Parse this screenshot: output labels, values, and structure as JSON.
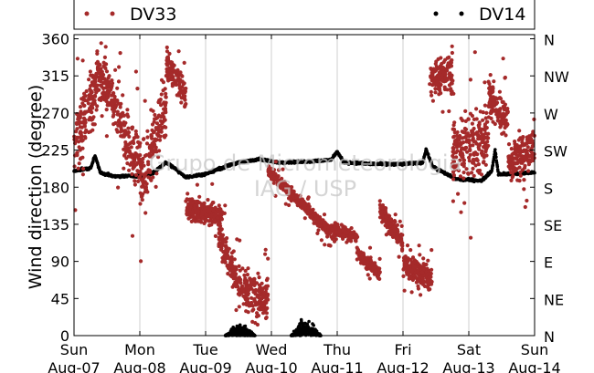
{
  "chart_data": {
    "type": "scatter",
    "title": "",
    "xlabel": "",
    "ylabel": "Wind direction (degree)",
    "ylim": [
      0,
      365
    ],
    "yticks": [
      0,
      45,
      90,
      135,
      180,
      225,
      270,
      315,
      360
    ],
    "ylabels_right": [
      "N",
      "NE",
      "E",
      "SE",
      "S",
      "SW",
      "W",
      "NW",
      "N"
    ],
    "xlim": [
      0,
      7
    ],
    "xticks": [
      {
        "day": "Sun",
        "date": "Aug-07"
      },
      {
        "day": "Mon",
        "date": "Aug-08"
      },
      {
        "day": "Tue",
        "date": "Aug-09"
      },
      {
        "day": "Wed",
        "date": "Aug-10"
      },
      {
        "day": "Thu",
        "date": "Aug-11"
      },
      {
        "day": "Fri",
        "date": "Aug-12"
      },
      {
        "day": "Sat",
        "date": "Aug-13"
      },
      {
        "day": "Sun",
        "date": "Aug-14"
      }
    ],
    "grid": "vertical",
    "legend": "top",
    "watermark": [
      "Grupo de Micrometeorologia",
      "IAG / USP"
    ],
    "series": [
      {
        "name": "DV33",
        "color": "#a52a2a",
        "marker": "circle",
        "segments": [
          {
            "x": [
              0.0,
              0.35
            ],
            "center": [
              230,
              300
            ],
            "spread": 70
          },
          {
            "x": [
              0.35,
              0.75
            ],
            "center": [
              320,
              260
            ],
            "spread": 60
          },
          {
            "x": [
              0.75,
              1.1
            ],
            "center": [
              250,
              180
            ],
            "spread": 70
          },
          {
            "x": [
              1.1,
              1.4
            ],
            "center": [
              200,
              280
            ],
            "spread": 80
          },
          {
            "x": [
              1.4,
              1.7
            ],
            "center": [
              330,
              290
            ],
            "spread": 35
          },
          {
            "x": [
              1.7,
              2.25
            ],
            "center": [
              155,
              145
            ],
            "spread": 25
          },
          {
            "x": [
              2.2,
              2.55
            ],
            "center": [
              120,
              55
            ],
            "spread": 35
          },
          {
            "x": [
              2.55,
              2.95
            ],
            "center": [
              60,
              40
            ],
            "spread": 45
          },
          {
            "x": [
              2.95,
              3.9
            ],
            "center": [
              200,
              125
            ],
            "spread": 14
          },
          {
            "x": [
              3.9,
              4.3
            ],
            "center": [
              130,
              120
            ],
            "spread": 12
          },
          {
            "x": [
              4.3,
              4.65
            ],
            "center": [
              100,
              75
            ],
            "spread": 15
          },
          {
            "x": [
              4.65,
              5.0
            ],
            "center": [
              155,
              110
            ],
            "spread": 22
          },
          {
            "x": [
              5.0,
              5.45
            ],
            "center": [
              85,
              70
            ],
            "spread": 30
          },
          {
            "x": [
              5.4,
              5.75
            ],
            "center": [
              310,
              320
            ],
            "spread": 40
          },
          {
            "x": [
              5.75,
              6.3
            ],
            "center": [
              220,
              240
            ],
            "spread": 70
          },
          {
            "x": [
              6.3,
              6.6
            ],
            "center": [
              290,
              260
            ],
            "spread": 45
          },
          {
            "x": [
              6.6,
              7.0
            ],
            "center": [
              210,
              230
            ],
            "spread": 50
          }
        ]
      },
      {
        "name": "DV14",
        "color": "#000000",
        "marker": "circle",
        "line_points": [
          {
            "x": 0.0,
            "y": 200
          },
          {
            "x": 0.25,
            "y": 203
          },
          {
            "x": 0.32,
            "y": 218
          },
          {
            "x": 0.4,
            "y": 198
          },
          {
            "x": 0.6,
            "y": 193
          },
          {
            "x": 1.0,
            "y": 194
          },
          {
            "x": 1.2,
            "y": 197
          },
          {
            "x": 1.4,
            "y": 210
          },
          {
            "x": 1.55,
            "y": 202
          },
          {
            "x": 1.7,
            "y": 192
          },
          {
            "x": 2.0,
            "y": 196
          },
          {
            "x": 2.4,
            "y": 208
          },
          {
            "x": 2.8,
            "y": 214
          },
          {
            "x": 3.1,
            "y": 210
          },
          {
            "x": 3.5,
            "y": 211
          },
          {
            "x": 3.9,
            "y": 213
          },
          {
            "x": 4.0,
            "y": 223
          },
          {
            "x": 4.1,
            "y": 210
          },
          {
            "x": 4.6,
            "y": 208
          },
          {
            "x": 5.0,
            "y": 208
          },
          {
            "x": 5.3,
            "y": 210
          },
          {
            "x": 5.35,
            "y": 226
          },
          {
            "x": 5.45,
            "y": 205
          },
          {
            "x": 5.8,
            "y": 190
          },
          {
            "x": 6.2,
            "y": 188
          },
          {
            "x": 6.35,
            "y": 200
          },
          {
            "x": 6.4,
            "y": 225
          },
          {
            "x": 6.45,
            "y": 196
          },
          {
            "x": 6.7,
            "y": 196
          },
          {
            "x": 7.0,
            "y": 198
          }
        ],
        "low_clusters": [
          {
            "x": [
              2.3,
              2.75
            ],
            "max_y": 22
          },
          {
            "x": [
              3.3,
              3.75
            ],
            "max_y": 30
          }
        ]
      }
    ]
  }
}
